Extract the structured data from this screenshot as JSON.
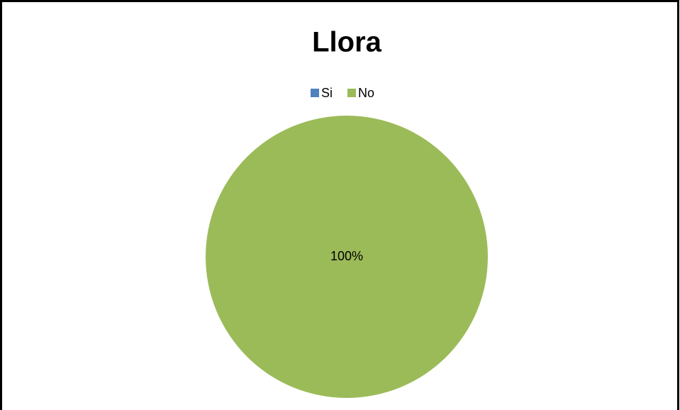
{
  "chart_data": {
    "type": "pie",
    "title": "Llora",
    "categories": [
      "Si",
      "No"
    ],
    "values": [
      0,
      100
    ],
    "value_labels": [
      null,
      "100%"
    ],
    "colors": [
      "#4f81bd",
      "#9bbb59"
    ],
    "legend": "top"
  }
}
